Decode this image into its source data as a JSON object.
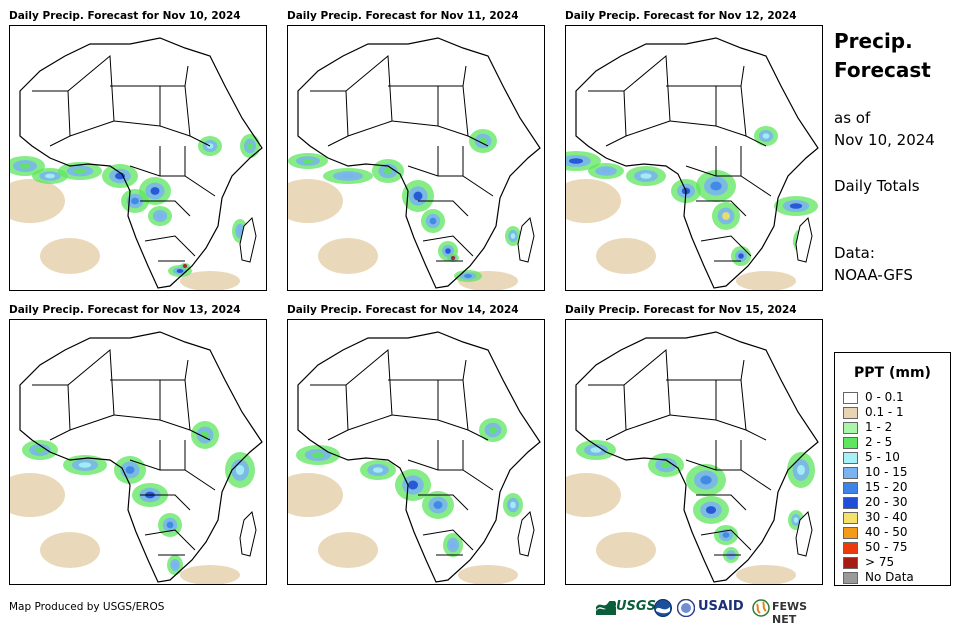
{
  "panels": [
    {
      "title": "Daily Precip. Forecast for Nov 10, 2024"
    },
    {
      "title": "Daily Precip. Forecast for Nov 11, 2024"
    },
    {
      "title": "Daily Precip. Forecast for Nov 12, 2024"
    },
    {
      "title": "Daily Precip. Forecast for Nov 13, 2024"
    },
    {
      "title": "Daily Precip. Forecast for Nov 14, 2024"
    },
    {
      "title": "Daily Precip. Forecast for Nov 15, 2024"
    }
  ],
  "side": {
    "title_line1": "Precip.",
    "title_line2": "Forecast",
    "asof_line1": "as of",
    "asof_line2": "Nov 10, 2024",
    "totals": "Daily Totals",
    "data_label": "Data:",
    "data_source": "NOAA-GFS"
  },
  "legend": {
    "title": "PPT (mm)",
    "items": [
      {
        "label": "0 - 0.1",
        "color": "#ffffff"
      },
      {
        "label": "0.1 - 1",
        "color": "#e8d4b2"
      },
      {
        "label": "1 - 2",
        "color": "#a9f5a9"
      },
      {
        "label": "2 - 5",
        "color": "#5ee65e"
      },
      {
        "label": "5 - 10",
        "color": "#a6f0f8"
      },
      {
        "label": "10 - 15",
        "color": "#79b3f2"
      },
      {
        "label": "15 - 20",
        "color": "#3d84e8"
      },
      {
        "label": "20 - 30",
        "color": "#1f4fd6"
      },
      {
        "label": "30 - 40",
        "color": "#f4e06a"
      },
      {
        "label": "40 - 50",
        "color": "#f59b1a"
      },
      {
        "label": "50 - 75",
        "color": "#ec3a0c"
      },
      {
        "label": "> 75",
        "color": "#a61b12"
      },
      {
        "label": "No Data",
        "color": "#9a9a9a"
      }
    ]
  },
  "footer": {
    "credit": "Map Produced by USGS/EROS",
    "logos": {
      "usgs": "USGS",
      "usaid": "USAID",
      "fews": "FEWS NET"
    }
  }
}
